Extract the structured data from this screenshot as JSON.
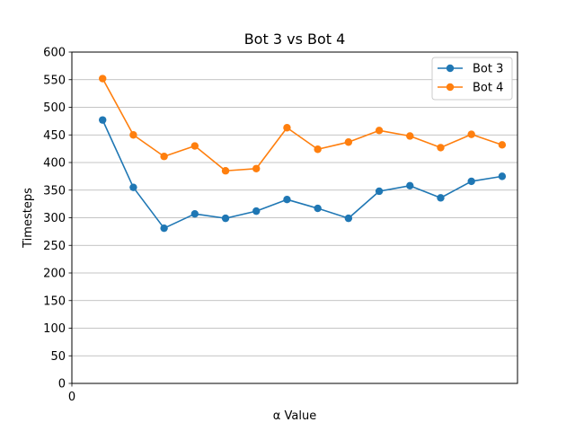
{
  "chart_data": {
    "type": "line",
    "title": "Bot 3 vs Bot 4",
    "xlabel": "α Value",
    "ylabel": "Timesteps",
    "x": [
      1,
      2,
      3,
      4,
      5,
      6,
      7,
      8,
      9,
      10,
      11,
      12,
      13,
      14
    ],
    "xlim": [
      0,
      14.5
    ],
    "x_tick_values": [
      0
    ],
    "x_tick_labels": [
      "0"
    ],
    "ylim": [
      0,
      600
    ],
    "y_ticks": [
      0,
      50,
      100,
      150,
      200,
      250,
      300,
      350,
      400,
      450,
      500,
      550,
      600
    ],
    "grid": "horizontal",
    "legend_position": "top-right",
    "series": [
      {
        "name": "Bot 3",
        "color": "#1f77b4",
        "values": [
          477,
          355,
          281,
          307,
          299,
          312,
          333,
          317,
          299,
          348,
          358,
          336,
          366,
          375
        ]
      },
      {
        "name": "Bot 4",
        "color": "#ff7f0e",
        "values": [
          552,
          450,
          411,
          430,
          385,
          389,
          463,
          424,
          437,
          458,
          448,
          427,
          451,
          432
        ]
      }
    ]
  }
}
